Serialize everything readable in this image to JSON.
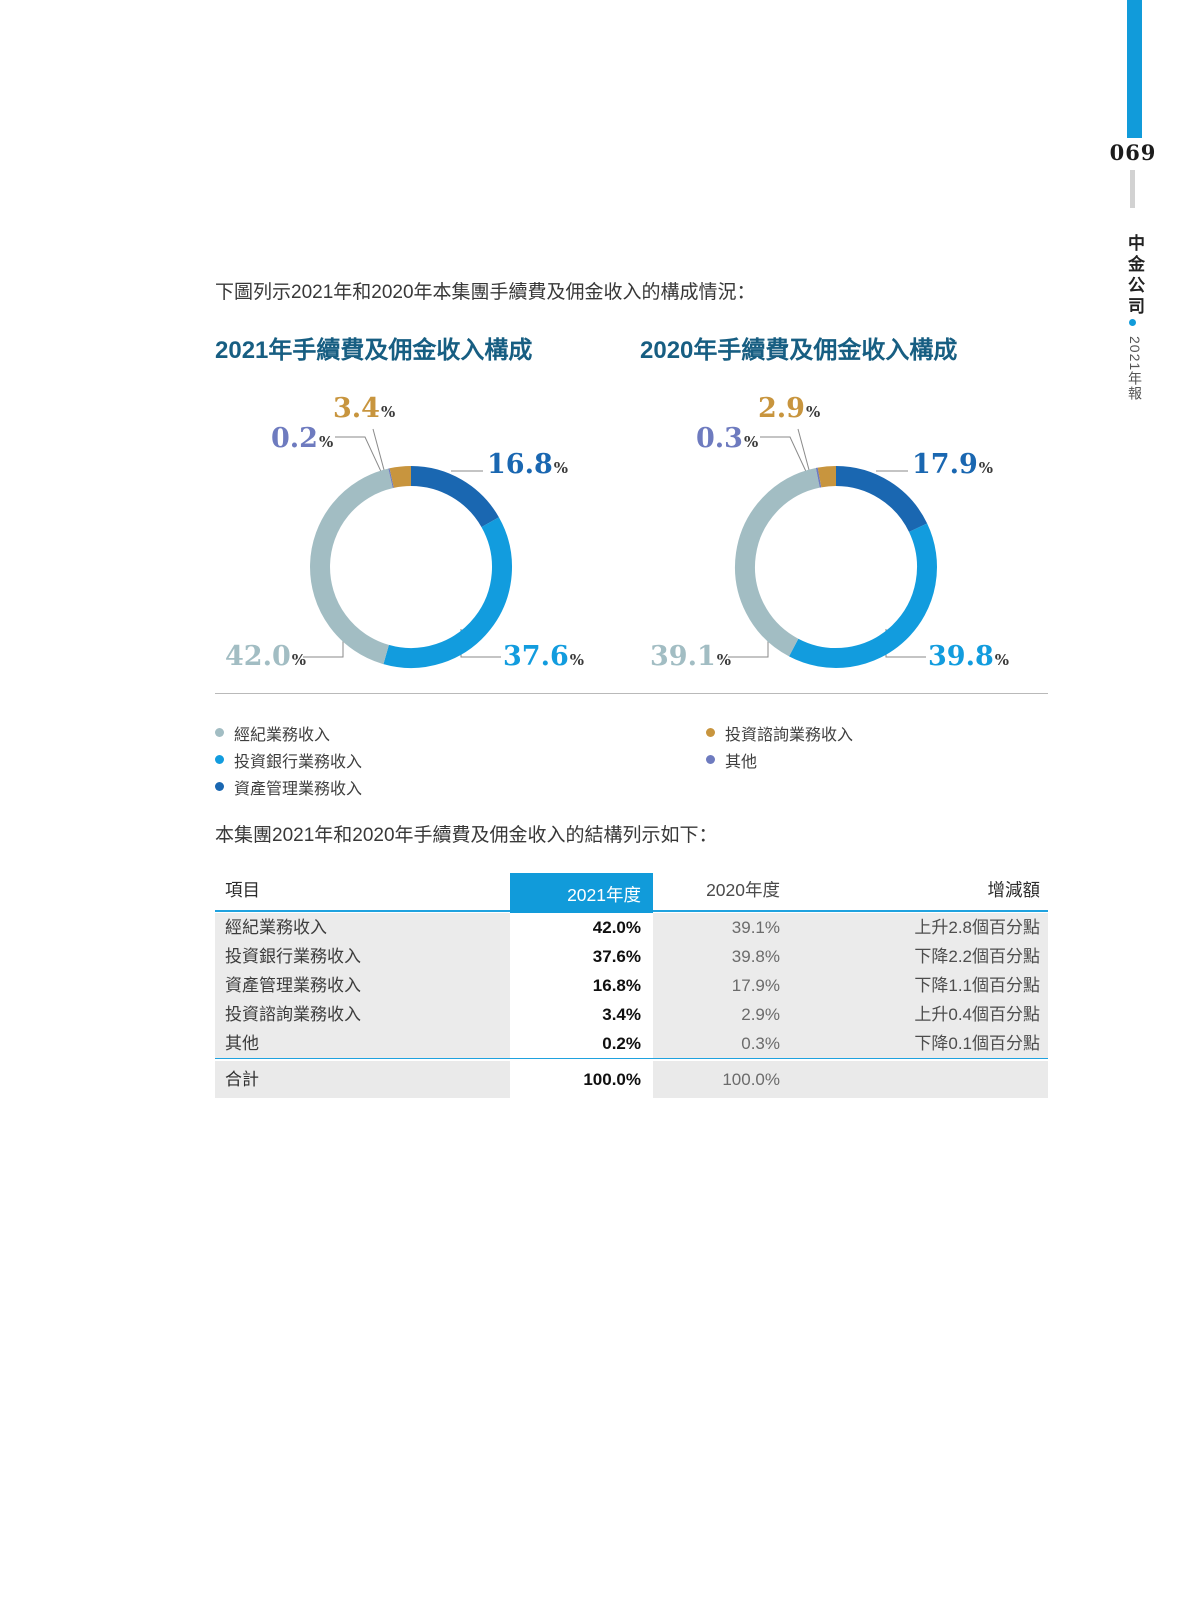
{
  "page": {
    "number": "069",
    "sidebar_company": "中金公司",
    "sidebar_report": "2021年報"
  },
  "colors": {
    "brand_blue": "#119BDA",
    "table_line": "#1FA2DF",
    "title_navy": "#175E82",
    "donut_asset_mgmt": "#1A67B1",
    "donut_inv_banking": "#129CDE",
    "donut_brokerage": "#A2BDC3",
    "donut_advisory": "#C8953E",
    "donut_others": "#6E7BBF"
  },
  "intro_top": "下圖列示2021年和2020年本集團手續費及佣金收入的構成情況：",
  "intro_table": "本集團2021年和2020年手續費及佣金收入的結構列示如下：",
  "chart_data": [
    {
      "type": "donut",
      "title": "2021年手續費及佣金收入構成",
      "unit": "%",
      "start_angle": 0,
      "segments": [
        {
          "label": "資產管理業務收入",
          "value": 16.8,
          "color_key": "donut_asset_mgmt",
          "slot": "right"
        },
        {
          "label": "投資銀行業務收入",
          "value": 37.6,
          "color_key": "donut_inv_banking",
          "slot": "bottom-right"
        },
        {
          "label": "經紀業務收入",
          "value": 42.0,
          "color_key": "donut_brokerage",
          "slot": "bottom-left"
        },
        {
          "label": "其他",
          "value": 0.2,
          "color_key": "donut_others",
          "slot": "left"
        },
        {
          "label": "投資諮詢業務收入",
          "value": 3.4,
          "color_key": "donut_advisory",
          "slot": "top"
        }
      ]
    },
    {
      "type": "donut",
      "title": "2020年手續費及佣金收入構成",
      "unit": "%",
      "start_angle": 0,
      "segments": [
        {
          "label": "資產管理業務收入",
          "value": 17.9,
          "color_key": "donut_asset_mgmt",
          "slot": "right"
        },
        {
          "label": "投資銀行業務收入",
          "value": 39.8,
          "color_key": "donut_inv_banking",
          "slot": "bottom-right"
        },
        {
          "label": "經紀業務收入",
          "value": 39.1,
          "color_key": "donut_brokerage",
          "slot": "bottom-left"
        },
        {
          "label": "其他",
          "value": 0.3,
          "color_key": "donut_others",
          "slot": "left"
        },
        {
          "label": "投資諮詢業務收入",
          "value": 2.9,
          "color_key": "donut_advisory",
          "slot": "top"
        }
      ]
    }
  ],
  "legend": {
    "columns": [
      [
        {
          "label": "經紀業務收入",
          "color_key": "donut_brokerage"
        },
        {
          "label": "投資銀行業務收入",
          "color_key": "donut_inv_banking"
        },
        {
          "label": "資產管理業務收入",
          "color_key": "donut_asset_mgmt"
        }
      ],
      [
        {
          "label": "投資諮詢業務收入",
          "color_key": "donut_advisory"
        },
        {
          "label": "其他",
          "color_key": "donut_others"
        }
      ]
    ]
  },
  "table": {
    "headers": {
      "item": "項目",
      "y2021": "2021年度",
      "y2020": "2020年度",
      "change": "增減額"
    },
    "rows": [
      {
        "item": "經紀業務收入",
        "y2021": "42.0%",
        "y2020": "39.1%",
        "change": "上升2.8個百分點"
      },
      {
        "item": "投資銀行業務收入",
        "y2021": "37.6%",
        "y2020": "39.8%",
        "change": "下降2.2個百分點"
      },
      {
        "item": "資產管理業務收入",
        "y2021": "16.8%",
        "y2020": "17.9%",
        "change": "下降1.1個百分點"
      },
      {
        "item": "投資諮詢業務收入",
        "y2021": "3.4%",
        "y2020": "2.9%",
        "change": "上升0.4個百分點"
      },
      {
        "item": "其他",
        "y2021": "0.2%",
        "y2020": "0.3%",
        "change": "下降0.1個百分點"
      }
    ],
    "total": {
      "item": "合計",
      "y2021": "100.0%",
      "y2020": "100.0%",
      "change": ""
    }
  }
}
